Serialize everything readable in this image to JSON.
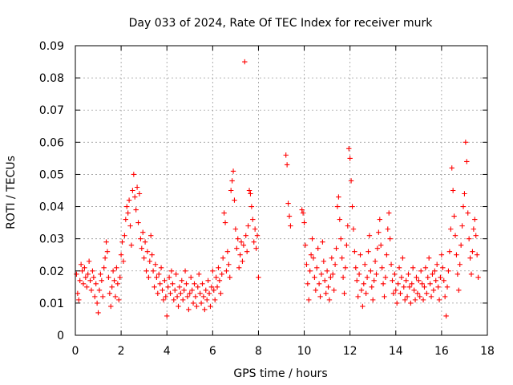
{
  "chart_data": {
    "type": "scatter",
    "title": "Day 033 of 2024, Rate Of TEC Index for receiver murk",
    "xlabel": "GPS time / hours",
    "ylabel": "ROTI / TECUs",
    "xlim": [
      0,
      18
    ],
    "ylim": [
      0,
      0.09
    ],
    "grid": true,
    "marker": "+",
    "series_color": "#ff0000",
    "xticks": [
      {
        "value": 0,
        "label": "0"
      },
      {
        "value": 2,
        "label": "2"
      },
      {
        "value": 4,
        "label": "4"
      },
      {
        "value": 6,
        "label": "6"
      },
      {
        "value": 8,
        "label": "8"
      },
      {
        "value": 10,
        "label": "10"
      },
      {
        "value": 12,
        "label": "12"
      },
      {
        "value": 14,
        "label": "14"
      },
      {
        "value": 16,
        "label": "16"
      },
      {
        "value": 18,
        "label": "18"
      }
    ],
    "yticks": [
      {
        "value": 0,
        "label": "0"
      },
      {
        "value": 0.01,
        "label": "0.01"
      },
      {
        "value": 0.02,
        "label": "0.02"
      },
      {
        "value": 0.03,
        "label": "0.03"
      },
      {
        "value": 0.04,
        "label": "0.04"
      },
      {
        "value": 0.05,
        "label": "0.05"
      },
      {
        "value": 0.06,
        "label": "0.06"
      },
      {
        "value": 0.07,
        "label": "0.07"
      },
      {
        "value": 0.08,
        "label": "0.08"
      },
      {
        "value": 0.09,
        "label": "0.09"
      }
    ],
    "points": [
      [
        0.05,
        0.019
      ],
      [
        0.1,
        0.013
      ],
      [
        0.15,
        0.011
      ],
      [
        0.2,
        0.017
      ],
      [
        0.25,
        0.022
      ],
      [
        0.3,
        0.02
      ],
      [
        0.35,
        0.016
      ],
      [
        0.4,
        0.021
      ],
      [
        0.45,
        0.018
      ],
      [
        0.5,
        0.015
      ],
      [
        0.55,
        0.019
      ],
      [
        0.6,
        0.023
      ],
      [
        0.65,
        0.017
      ],
      [
        0.7,
        0.014
      ],
      [
        0.75,
        0.02
      ],
      [
        0.8,
        0.018
      ],
      [
        0.85,
        0.012
      ],
      [
        0.9,
        0.016
      ],
      [
        0.95,
        0.01
      ],
      [
        1.0,
        0.007
      ],
      [
        1.05,
        0.014
      ],
      [
        1.1,
        0.019
      ],
      [
        1.15,
        0.017
      ],
      [
        1.2,
        0.012
      ],
      [
        1.25,
        0.021
      ],
      [
        1.3,
        0.024
      ],
      [
        1.35,
        0.029
      ],
      [
        1.4,
        0.026
      ],
      [
        1.45,
        0.018
      ],
      [
        1.5,
        0.013
      ],
      [
        1.55,
        0.009
      ],
      [
        1.6,
        0.015
      ],
      [
        1.65,
        0.02
      ],
      [
        1.7,
        0.017
      ],
      [
        1.75,
        0.012
      ],
      [
        1.8,
        0.021
      ],
      [
        1.85,
        0.016
      ],
      [
        1.9,
        0.011
      ],
      [
        1.95,
        0.018
      ],
      [
        2.0,
        0.025
      ],
      [
        2.05,
        0.029
      ],
      [
        2.1,
        0.023
      ],
      [
        2.15,
        0.031
      ],
      [
        2.2,
        0.036
      ],
      [
        2.25,
        0.04
      ],
      [
        2.3,
        0.038
      ],
      [
        2.35,
        0.042
      ],
      [
        2.4,
        0.034
      ],
      [
        2.45,
        0.028
      ],
      [
        2.5,
        0.045
      ],
      [
        2.55,
        0.05
      ],
      [
        2.6,
        0.043
      ],
      [
        2.65,
        0.039
      ],
      [
        2.7,
        0.046
      ],
      [
        2.75,
        0.035
      ],
      [
        2.8,
        0.044
      ],
      [
        2.85,
        0.03
      ],
      [
        2.9,
        0.027
      ],
      [
        2.95,
        0.032
      ],
      [
        3.0,
        0.024
      ],
      [
        3.05,
        0.029
      ],
      [
        3.1,
        0.02
      ],
      [
        3.15,
        0.026
      ],
      [
        3.2,
        0.018
      ],
      [
        3.25,
        0.023
      ],
      [
        3.3,
        0.031
      ],
      [
        3.35,
        0.025
      ],
      [
        3.4,
        0.02
      ],
      [
        3.45,
        0.015
      ],
      [
        3.5,
        0.022
      ],
      [
        3.55,
        0.018
      ],
      [
        3.6,
        0.013
      ],
      [
        3.65,
        0.019
      ],
      [
        3.7,
        0.016
      ],
      [
        3.75,
        0.021
      ],
      [
        3.8,
        0.014
      ],
      [
        3.85,
        0.011
      ],
      [
        3.9,
        0.017
      ],
      [
        3.95,
        0.012
      ],
      [
        4.0,
        0.006
      ],
      [
        4.05,
        0.015
      ],
      [
        4.1,
        0.018
      ],
      [
        4.15,
        0.013
      ],
      [
        4.2,
        0.02
      ],
      [
        4.25,
        0.016
      ],
      [
        4.3,
        0.011
      ],
      [
        4.35,
        0.014
      ],
      [
        4.4,
        0.019
      ],
      [
        4.45,
        0.012
      ],
      [
        4.5,
        0.009
      ],
      [
        4.55,
        0.015
      ],
      [
        4.6,
        0.013
      ],
      [
        4.65,
        0.017
      ],
      [
        4.7,
        0.011
      ],
      [
        4.75,
        0.014
      ],
      [
        4.8,
        0.02
      ],
      [
        4.85,
        0.016
      ],
      [
        4.9,
        0.012
      ],
      [
        4.95,
        0.008
      ],
      [
        5.0,
        0.013
      ],
      [
        5.05,
        0.018
      ],
      [
        5.1,
        0.014
      ],
      [
        5.15,
        0.01
      ],
      [
        5.2,
        0.016
      ],
      [
        5.25,
        0.012
      ],
      [
        5.3,
        0.009
      ],
      [
        5.35,
        0.015
      ],
      [
        5.4,
        0.019
      ],
      [
        5.45,
        0.013
      ],
      [
        5.5,
        0.01
      ],
      [
        5.55,
        0.016
      ],
      [
        5.6,
        0.012
      ],
      [
        5.65,
        0.008
      ],
      [
        5.7,
        0.014
      ],
      [
        5.75,
        0.011
      ],
      [
        5.8,
        0.017
      ],
      [
        5.85,
        0.013
      ],
      [
        5.9,
        0.009
      ],
      [
        5.95,
        0.015
      ],
      [
        6.0,
        0.02
      ],
      [
        6.05,
        0.014
      ],
      [
        6.1,
        0.011
      ],
      [
        6.15,
        0.018
      ],
      [
        6.2,
        0.015
      ],
      [
        6.25,
        0.021
      ],
      [
        6.3,
        0.017
      ],
      [
        6.35,
        0.013
      ],
      [
        6.4,
        0.019
      ],
      [
        6.45,
        0.024
      ],
      [
        6.5,
        0.038
      ],
      [
        6.55,
        0.035
      ],
      [
        6.6,
        0.02
      ],
      [
        6.65,
        0.026
      ],
      [
        6.7,
        0.022
      ],
      [
        6.75,
        0.018
      ],
      [
        6.8,
        0.045
      ],
      [
        6.85,
        0.048
      ],
      [
        6.9,
        0.051
      ],
      [
        6.95,
        0.042
      ],
      [
        7.0,
        0.033
      ],
      [
        7.05,
        0.027
      ],
      [
        7.1,
        0.03
      ],
      [
        7.15,
        0.021
      ],
      [
        7.2,
        0.025
      ],
      [
        7.25,
        0.029
      ],
      [
        7.3,
        0.023
      ],
      [
        7.35,
        0.028
      ],
      [
        7.4,
        0.085
      ],
      [
        7.45,
        0.031
      ],
      [
        7.5,
        0.026
      ],
      [
        7.55,
        0.034
      ],
      [
        7.6,
        0.045
      ],
      [
        7.65,
        0.044
      ],
      [
        7.7,
        0.04
      ],
      [
        7.75,
        0.036
      ],
      [
        7.8,
        0.029
      ],
      [
        7.85,
        0.033
      ],
      [
        7.9,
        0.027
      ],
      [
        7.95,
        0.031
      ],
      [
        8.0,
        0.018
      ],
      [
        9.2,
        0.056
      ],
      [
        9.25,
        0.053
      ],
      [
        9.3,
        0.041
      ],
      [
        9.35,
        0.037
      ],
      [
        9.4,
        0.034
      ],
      [
        9.9,
        0.039
      ],
      [
        9.95,
        0.038
      ],
      [
        10.0,
        0.035
      ],
      [
        10.05,
        0.028
      ],
      [
        10.1,
        0.022
      ],
      [
        10.15,
        0.016
      ],
      [
        10.2,
        0.011
      ],
      [
        10.25,
        0.02
      ],
      [
        10.3,
        0.025
      ],
      [
        10.35,
        0.03
      ],
      [
        10.4,
        0.024
      ],
      [
        10.45,
        0.018
      ],
      [
        10.5,
        0.014
      ],
      [
        10.55,
        0.021
      ],
      [
        10.6,
        0.027
      ],
      [
        10.65,
        0.016
      ],
      [
        10.7,
        0.012
      ],
      [
        10.75,
        0.019
      ],
      [
        10.8,
        0.029
      ],
      [
        10.85,
        0.023
      ],
      [
        10.9,
        0.017
      ],
      [
        10.95,
        0.013
      ],
      [
        11.0,
        0.02
      ],
      [
        11.05,
        0.015
      ],
      [
        11.1,
        0.011
      ],
      [
        11.15,
        0.018
      ],
      [
        11.2,
        0.024
      ],
      [
        11.25,
        0.019
      ],
      [
        11.3,
        0.014
      ],
      [
        11.35,
        0.022
      ],
      [
        11.4,
        0.027
      ],
      [
        11.45,
        0.04
      ],
      [
        11.5,
        0.043
      ],
      [
        11.55,
        0.036
      ],
      [
        11.6,
        0.03
      ],
      [
        11.65,
        0.024
      ],
      [
        11.7,
        0.018
      ],
      [
        11.75,
        0.013
      ],
      [
        11.8,
        0.021
      ],
      [
        11.85,
        0.028
      ],
      [
        11.9,
        0.034
      ],
      [
        11.95,
        0.058
      ],
      [
        12.0,
        0.055
      ],
      [
        12.05,
        0.048
      ],
      [
        12.1,
        0.04
      ],
      [
        12.15,
        0.033
      ],
      [
        12.2,
        0.026
      ],
      [
        12.25,
        0.021
      ],
      [
        12.3,
        0.017
      ],
      [
        12.35,
        0.012
      ],
      [
        12.4,
        0.019
      ],
      [
        12.45,
        0.025
      ],
      [
        12.5,
        0.014
      ],
      [
        12.55,
        0.009
      ],
      [
        12.6,
        0.016
      ],
      [
        12.65,
        0.022
      ],
      [
        12.7,
        0.013
      ],
      [
        12.75,
        0.018
      ],
      [
        12.8,
        0.026
      ],
      [
        12.85,
        0.031
      ],
      [
        12.9,
        0.02
      ],
      [
        12.95,
        0.015
      ],
      [
        13.0,
        0.011
      ],
      [
        13.05,
        0.017
      ],
      [
        13.1,
        0.023
      ],
      [
        13.15,
        0.019
      ],
      [
        13.2,
        0.027
      ],
      [
        13.25,
        0.032
      ],
      [
        13.3,
        0.036
      ],
      [
        13.35,
        0.028
      ],
      [
        13.4,
        0.021
      ],
      [
        13.45,
        0.016
      ],
      [
        13.5,
        0.012
      ],
      [
        13.55,
        0.018
      ],
      [
        13.6,
        0.025
      ],
      [
        13.65,
        0.033
      ],
      [
        13.7,
        0.038
      ],
      [
        13.75,
        0.03
      ],
      [
        13.8,
        0.022
      ],
      [
        13.85,
        0.017
      ],
      [
        13.9,
        0.013
      ],
      [
        13.95,
        0.019
      ],
      [
        14.0,
        0.014
      ],
      [
        14.05,
        0.01
      ],
      [
        14.1,
        0.016
      ],
      [
        14.15,
        0.021
      ],
      [
        14.2,
        0.013
      ],
      [
        14.25,
        0.018
      ],
      [
        14.3,
        0.024
      ],
      [
        14.35,
        0.015
      ],
      [
        14.4,
        0.011
      ],
      [
        14.45,
        0.017
      ],
      [
        14.5,
        0.012
      ],
      [
        14.55,
        0.019
      ],
      [
        14.6,
        0.015
      ],
      [
        14.65,
        0.01
      ],
      [
        14.7,
        0.016
      ],
      [
        14.75,
        0.021
      ],
      [
        14.8,
        0.014
      ],
      [
        14.85,
        0.011
      ],
      [
        14.9,
        0.018
      ],
      [
        14.95,
        0.013
      ],
      [
        15.0,
        0.017
      ],
      [
        15.05,
        0.012
      ],
      [
        15.1,
        0.02
      ],
      [
        15.15,
        0.016
      ],
      [
        15.2,
        0.011
      ],
      [
        15.25,
        0.015
      ],
      [
        15.3,
        0.021
      ],
      [
        15.35,
        0.013
      ],
      [
        15.4,
        0.018
      ],
      [
        15.45,
        0.024
      ],
      [
        15.5,
        0.016
      ],
      [
        15.55,
        0.012
      ],
      [
        15.6,
        0.019
      ],
      [
        15.65,
        0.014
      ],
      [
        15.7,
        0.02
      ],
      [
        15.75,
        0.017
      ],
      [
        15.8,
        0.022
      ],
      [
        15.85,
        0.015
      ],
      [
        15.9,
        0.011
      ],
      [
        15.95,
        0.018
      ],
      [
        16.0,
        0.025
      ],
      [
        16.05,
        0.021
      ],
      [
        16.1,
        0.017
      ],
      [
        16.15,
        0.012
      ],
      [
        16.2,
        0.006
      ],
      [
        16.25,
        0.015
      ],
      [
        16.3,
        0.02
      ],
      [
        16.35,
        0.026
      ],
      [
        16.4,
        0.033
      ],
      [
        16.45,
        0.052
      ],
      [
        16.5,
        0.045
      ],
      [
        16.55,
        0.037
      ],
      [
        16.6,
        0.031
      ],
      [
        16.65,
        0.025
      ],
      [
        16.7,
        0.019
      ],
      [
        16.75,
        0.014
      ],
      [
        16.8,
        0.022
      ],
      [
        16.85,
        0.028
      ],
      [
        16.9,
        0.034
      ],
      [
        16.95,
        0.04
      ],
      [
        17.0,
        0.044
      ],
      [
        17.05,
        0.06
      ],
      [
        17.1,
        0.054
      ],
      [
        17.15,
        0.038
      ],
      [
        17.2,
        0.03
      ],
      [
        17.25,
        0.024
      ],
      [
        17.3,
        0.019
      ],
      [
        17.35,
        0.026
      ],
      [
        17.4,
        0.033
      ],
      [
        17.45,
        0.036
      ],
      [
        17.5,
        0.031
      ],
      [
        17.55,
        0.025
      ],
      [
        17.6,
        0.018
      ]
    ]
  }
}
